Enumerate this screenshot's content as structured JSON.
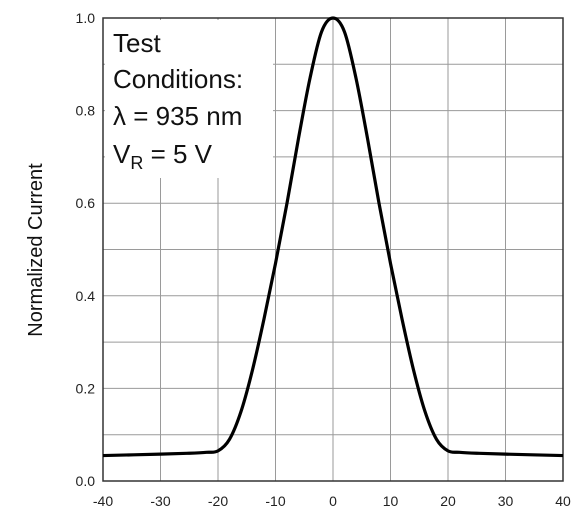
{
  "chart_data": {
    "type": "line",
    "title": "",
    "xlabel": "",
    "ylabel": "Normalized Current",
    "xlim": [
      -40,
      40
    ],
    "ylim": [
      0.0,
      1.0
    ],
    "x_ticks": [
      -40,
      -30,
      -20,
      -10,
      0,
      10,
      20,
      30,
      40
    ],
    "x_tick_labels": [
      "-40",
      "-30",
      "-20",
      "-10",
      "0",
      "10",
      "20",
      "30",
      "40"
    ],
    "y_ticks": [
      0.0,
      0.2,
      0.4,
      0.6,
      0.8,
      1.0
    ],
    "y_tick_labels": [
      "0.0",
      "0.2",
      "0.4",
      "0.6",
      "0.8",
      "1.0"
    ],
    "grid": true,
    "series": [
      {
        "x": [
          -40,
          -30,
          -25,
          -22,
          -20,
          -18,
          -16,
          -14,
          -12,
          -10,
          -8,
          -6,
          -4,
          -2,
          0,
          2,
          4,
          6,
          8,
          10,
          12,
          14,
          16,
          18,
          20,
          22,
          25,
          30,
          40
        ],
        "y": [
          0.055,
          0.058,
          0.06,
          0.062,
          0.065,
          0.09,
          0.15,
          0.24,
          0.35,
          0.47,
          0.6,
          0.74,
          0.87,
          0.97,
          1.0,
          0.97,
          0.87,
          0.74,
          0.6,
          0.47,
          0.35,
          0.24,
          0.15,
          0.09,
          0.065,
          0.062,
          0.06,
          0.058,
          0.055
        ]
      }
    ],
    "annotations": {
      "line1": "Test",
      "line2": "Conditions:",
      "line3": "λ = 935 nm",
      "line4_main": "V",
      "line4_sub": "R",
      "line4_rest": " = 5 V"
    }
  }
}
